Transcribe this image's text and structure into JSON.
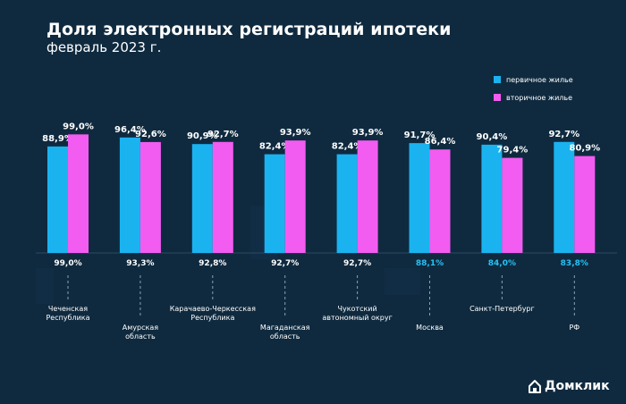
{
  "title": "Доля электронных регистраций ипотеки",
  "subtitle": "февраль 2023 г.",
  "legend": [
    {
      "label": "первичное жилье",
      "color": "#1ab3f0"
    },
    {
      "label": "вторичное жилье",
      "color": "#f25cf0"
    }
  ],
  "brand": {
    "name": "Домклик",
    "icon": "house-icon"
  },
  "colors": {
    "background": "#0f2a3f",
    "text": "#ffffff",
    "highlight_total": "#28c0f5"
  },
  "chart_data": {
    "type": "bar",
    "title": "Доля электронных регистраций ипотеки",
    "subtitle": "февраль 2023 г.",
    "categories": [
      {
        "label": "Чеченская Республика",
        "lines": [
          "Чеченская",
          "Республика"
        ],
        "label_pos": "high"
      },
      {
        "label": "Амурская область",
        "lines": [
          "Амурская",
          "область"
        ],
        "label_pos": "low"
      },
      {
        "label": "Карачаево-Черкесская Республика",
        "lines": [
          "Карачаево-Черкесская",
          "Республика"
        ],
        "label_pos": "high"
      },
      {
        "label": "Магаданская область",
        "lines": [
          "Магаданская",
          "область"
        ],
        "label_pos": "low"
      },
      {
        "label": "Чукотский автономный округ",
        "lines": [
          "Чукотский",
          "автономный округ"
        ],
        "label_pos": "high"
      },
      {
        "label": "Москва",
        "lines": [
          "Москва"
        ],
        "label_pos": "low"
      },
      {
        "label": "Санкт-Петербург",
        "lines": [
          "Санкт-Петербург"
        ],
        "label_pos": "high"
      },
      {
        "label": "РФ",
        "lines": [
          "РФ"
        ],
        "label_pos": "low"
      }
    ],
    "series": [
      {
        "name": "первичное жилье",
        "color": "#1ab3f0",
        "values": [
          88.9,
          96.4,
          90.9,
          82.4,
          82.4,
          91.7,
          90.4,
          92.7
        ],
        "labels": [
          "88,9%",
          "96,4%",
          "90,9%",
          "82,4%",
          "82,4%",
          "91,7%",
          "90,4%",
          "92,7%"
        ]
      },
      {
        "name": "вторичное жилье",
        "color": "#f25cf0",
        "values": [
          99.0,
          92.6,
          92.7,
          93.9,
          93.9,
          86.4,
          79.4,
          80.9
        ],
        "labels": [
          "99,0%",
          "92,6%",
          "92,7%",
          "93,9%",
          "93,9%",
          "86,4%",
          "79,4%",
          "80,9%"
        ]
      }
    ],
    "totals": {
      "values": [
        99.0,
        93.3,
        92.8,
        92.7,
        92.7,
        88.1,
        84.0,
        83.8
      ],
      "labels": [
        "99,0%",
        "93,3%",
        "92,8%",
        "92,7%",
        "92,7%",
        "88,1%",
        "84,0%",
        "83,8%"
      ],
      "highlighted": [
        false,
        false,
        false,
        false,
        false,
        true,
        true,
        true
      ]
    },
    "ylim": [
      0,
      100
    ],
    "grid": false,
    "legend_position": "top-right"
  }
}
